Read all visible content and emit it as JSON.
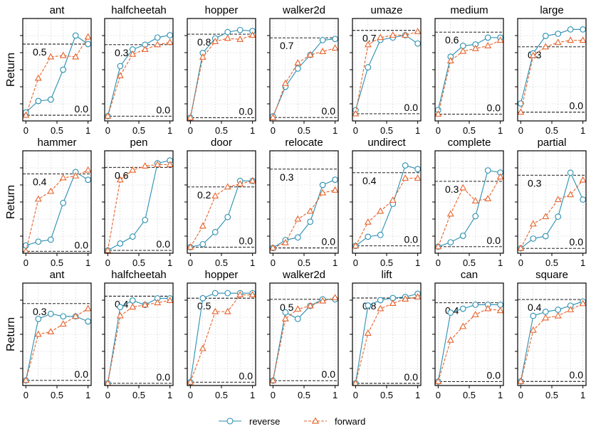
{
  "chart_data": {
    "type": "line",
    "ylabel": "Return",
    "x": [
      0,
      0.2,
      0.4,
      0.6,
      0.8,
      1
    ],
    "xticks": [
      0,
      0.5,
      1
    ],
    "xtick_labels": [
      "0",
      "0.5",
      "1"
    ],
    "colors": {
      "reverse": "#2a8fb0",
      "forward": "#e8622a"
    },
    "legend": {
      "placement": "bottom-center",
      "items": [
        {
          "key": "reverse",
          "label": "reverse",
          "marker": "circle",
          "line": "solid"
        },
        {
          "key": "forward",
          "label": "forward",
          "marker": "triangle",
          "line": "dashed"
        }
      ]
    },
    "panels": [
      {
        "title": "ant",
        "ylim": [
          -0.04,
          0.68
        ],
        "refs": [
          {
            "value": 0.0,
            "label": "0.0"
          },
          {
            "value": 0.5,
            "label": "0.5"
          }
        ],
        "reverse": [
          0.02,
          0.1,
          0.11,
          0.32,
          0.56,
          0.5
        ],
        "forward": [
          0.0,
          0.26,
          0.41,
          0.42,
          0.41,
          0.55
        ]
      },
      {
        "title": "halfcheetah",
        "ylim": [
          -0.02,
          0.41
        ],
        "refs": [
          {
            "value": 0.0,
            "label": "0.0"
          },
          {
            "value": 0.3,
            "label": "0.3"
          }
        ],
        "reverse": [
          0.0,
          0.21,
          0.28,
          0.3,
          0.33,
          0.34
        ],
        "forward": [
          0.0,
          0.17,
          0.26,
          0.28,
          0.3,
          0.31
        ]
      },
      {
        "title": "hopper",
        "ylim": [
          -0.03,
          0.95
        ],
        "refs": [
          {
            "value": 0.0,
            "label": "0.0"
          },
          {
            "value": 0.8,
            "label": "0.8"
          }
        ],
        "reverse": [
          0.0,
          0.62,
          0.76,
          0.82,
          0.84,
          0.83
        ],
        "forward": [
          0.0,
          0.58,
          0.73,
          0.76,
          0.75,
          0.79
        ]
      },
      {
        "title": "walker2d",
        "ylim": [
          -0.03,
          0.87
        ],
        "refs": [
          {
            "value": 0.0,
            "label": "0.0"
          },
          {
            "value": 0.7,
            "label": "0.7"
          }
        ],
        "reverse": [
          0.01,
          0.27,
          0.43,
          0.55,
          0.68,
          0.69
        ],
        "forward": [
          0.0,
          0.3,
          0.48,
          0.55,
          0.58,
          0.61
        ]
      },
      {
        "title": "umaze",
        "ylim": [
          -0.06,
          0.8
        ],
        "refs": [
          {
            "value": 0.0,
            "label": "0.0"
          },
          {
            "value": 0.7,
            "label": "0.7"
          }
        ],
        "reverse": [
          0.03,
          0.39,
          0.62,
          0.64,
          0.66,
          0.59
        ],
        "forward": [
          0.0,
          0.58,
          0.64,
          0.66,
          0.66,
          0.69
        ]
      },
      {
        "title": "medium",
        "ylim": [
          -0.05,
          0.7
        ],
        "refs": [
          {
            "value": 0.0,
            "label": "0.0"
          },
          {
            "value": 0.6,
            "label": "0.6"
          }
        ],
        "reverse": [
          0.03,
          0.42,
          0.5,
          0.51,
          0.56,
          0.56
        ],
        "forward": [
          0.0,
          0.39,
          0.46,
          0.48,
          0.5,
          0.54
        ]
      },
      {
        "title": "large",
        "ylim": [
          -0.04,
          0.43
        ],
        "refs": [
          {
            "value": 0.0,
            "label": "0.0"
          },
          {
            "value": 0.3,
            "label": "0.3"
          }
        ],
        "reverse": [
          0.04,
          0.27,
          0.35,
          0.36,
          0.38,
          0.38
        ],
        "forward": [
          0.0,
          0.26,
          0.3,
          0.32,
          0.33,
          0.33
        ]
      },
      {
        "title": "hammer",
        "ylim": [
          -0.01,
          0.52
        ],
        "refs": [
          {
            "value": 0.0,
            "label": "0.0"
          },
          {
            "value": 0.4,
            "label": "0.4"
          }
        ],
        "reverse": [
          0.03,
          0.05,
          0.06,
          0.25,
          0.41,
          0.37
        ],
        "forward": [
          0.0,
          0.27,
          0.31,
          0.38,
          0.39,
          0.42
        ]
      },
      {
        "title": "pen",
        "ylim": [
          -0.02,
          0.72
        ],
        "refs": [
          {
            "value": 0.0,
            "label": "0.0"
          },
          {
            "value": 0.6,
            "label": "0.6"
          }
        ],
        "reverse": [
          0.0,
          0.05,
          0.1,
          0.22,
          0.63,
          0.65
        ],
        "forward": [
          0.0,
          0.51,
          0.58,
          0.61,
          0.62,
          0.62
        ]
      },
      {
        "title": "door",
        "ylim": [
          -0.02,
          0.32
        ],
        "refs": [
          {
            "value": 0.0,
            "label": "0.0"
          },
          {
            "value": 0.2,
            "label": "0.2"
          }
        ],
        "reverse": [
          0.0,
          0.01,
          0.05,
          0.1,
          0.22,
          0.22
        ],
        "forward": [
          0.0,
          0.07,
          0.17,
          0.2,
          0.21,
          0.22
        ]
      },
      {
        "title": "relocate",
        "ylim": [
          -0.02,
          0.37
        ],
        "refs": [
          {
            "value": 0.0,
            "label": "0.0"
          },
          {
            "value": 0.3,
            "label": "0.3"
          }
        ],
        "reverse": [
          0.0,
          0.03,
          0.04,
          0.1,
          0.24,
          0.26
        ],
        "forward": [
          0.0,
          0.02,
          0.11,
          0.14,
          0.21,
          0.22
        ]
      },
      {
        "title": "undirect",
        "ylim": [
          -0.04,
          0.52
        ],
        "refs": [
          {
            "value": 0.0,
            "label": "0.0"
          },
          {
            "value": 0.4,
            "label": "0.4"
          }
        ],
        "reverse": [
          0.0,
          0.05,
          0.06,
          0.23,
          0.44,
          0.42
        ],
        "forward": [
          0.0,
          0.13,
          0.19,
          0.25,
          0.37,
          0.37
        ]
      },
      {
        "title": "complete",
        "ylim": [
          -0.03,
          0.44
        ],
        "refs": [
          {
            "value": 0.0,
            "label": "0.0"
          },
          {
            "value": 0.3,
            "label": "0.3"
          }
        ],
        "reverse": [
          0.0,
          0.02,
          0.05,
          0.14,
          0.35,
          0.34
        ],
        "forward": [
          0.0,
          0.15,
          0.27,
          0.21,
          0.22,
          0.32
        ]
      },
      {
        "title": "partial",
        "ylim": [
          -0.02,
          0.4
        ],
        "refs": [
          {
            "value": 0.0,
            "label": "0.0"
          },
          {
            "value": 0.3,
            "label": "0.3"
          }
        ],
        "reverse": [
          0.0,
          0.04,
          0.05,
          0.13,
          0.31,
          0.2
        ],
        "forward": [
          0.0,
          0.1,
          0.13,
          0.2,
          0.22,
          0.28
        ]
      },
      {
        "title": "ant",
        "ylim": [
          -0.02,
          0.38
        ],
        "refs": [
          {
            "value": 0.0,
            "label": "0.0"
          },
          {
            "value": 0.3,
            "label": "0.3"
          }
        ],
        "reverse": [
          0.0,
          0.24,
          0.26,
          0.25,
          0.25,
          0.23
        ],
        "forward": [
          0.0,
          0.18,
          0.19,
          0.22,
          0.25,
          0.28
        ]
      },
      {
        "title": "halfcheetah",
        "ylim": [
          -0.01,
          0.46
        ],
        "refs": [
          {
            "value": 0.0,
            "label": "0.0"
          },
          {
            "value": 0.4,
            "label": "0.4"
          }
        ],
        "reverse": [
          0.0,
          0.35,
          0.38,
          0.36,
          0.39,
          0.39
        ],
        "forward": [
          0.0,
          0.31,
          0.35,
          0.36,
          0.37,
          0.38
        ]
      },
      {
        "title": "hopper",
        "ylim": [
          -0.02,
          0.59
        ],
        "refs": [
          {
            "value": 0.0,
            "label": "0.0"
          },
          {
            "value": 0.5,
            "label": "0.5"
          }
        ],
        "reverse": [
          0.0,
          0.5,
          0.53,
          0.53,
          0.53,
          0.53
        ],
        "forward": [
          0.0,
          0.2,
          0.42,
          0.42,
          0.52,
          0.52
        ]
      },
      {
        "title": "walker2d",
        "ylim": [
          -0.03,
          0.6
        ],
        "refs": [
          {
            "value": 0.0,
            "label": "0.0"
          },
          {
            "value": 0.5,
            "label": "0.5"
          }
        ],
        "reverse": [
          0.0,
          0.42,
          0.38,
          0.46,
          0.5,
          0.5
        ],
        "forward": [
          0.0,
          0.38,
          0.44,
          0.46,
          0.49,
          0.51
        ]
      },
      {
        "title": "lift",
        "ylim": [
          -0.02,
          0.94
        ],
        "refs": [
          {
            "value": 0.0,
            "label": "0.0"
          },
          {
            "value": 0.8,
            "label": "0.8"
          }
        ],
        "reverse": [
          0.0,
          0.73,
          0.78,
          0.8,
          0.81,
          0.84
        ],
        "forward": [
          0.0,
          0.47,
          0.7,
          0.75,
          0.79,
          0.81
        ]
      },
      {
        "title": "can",
        "ylim": [
          -0.02,
          0.5
        ],
        "refs": [
          {
            "value": 0.0,
            "label": "0.0"
          },
          {
            "value": 0.4,
            "label": "0.4"
          }
        ],
        "reverse": [
          0.0,
          0.35,
          0.37,
          0.39,
          0.39,
          0.39
        ],
        "forward": [
          0.0,
          0.21,
          0.28,
          0.34,
          0.37,
          0.36
        ]
      },
      {
        "title": "square",
        "ylim": [
          -0.02,
          0.48
        ],
        "refs": [
          {
            "value": 0.0,
            "label": "0.0"
          },
          {
            "value": 0.4,
            "label": "0.4"
          }
        ],
        "reverse": [
          0.0,
          0.32,
          0.34,
          0.35,
          0.37,
          0.39
        ],
        "forward": [
          0.0,
          0.25,
          0.31,
          0.32,
          0.35,
          0.38
        ]
      }
    ]
  }
}
